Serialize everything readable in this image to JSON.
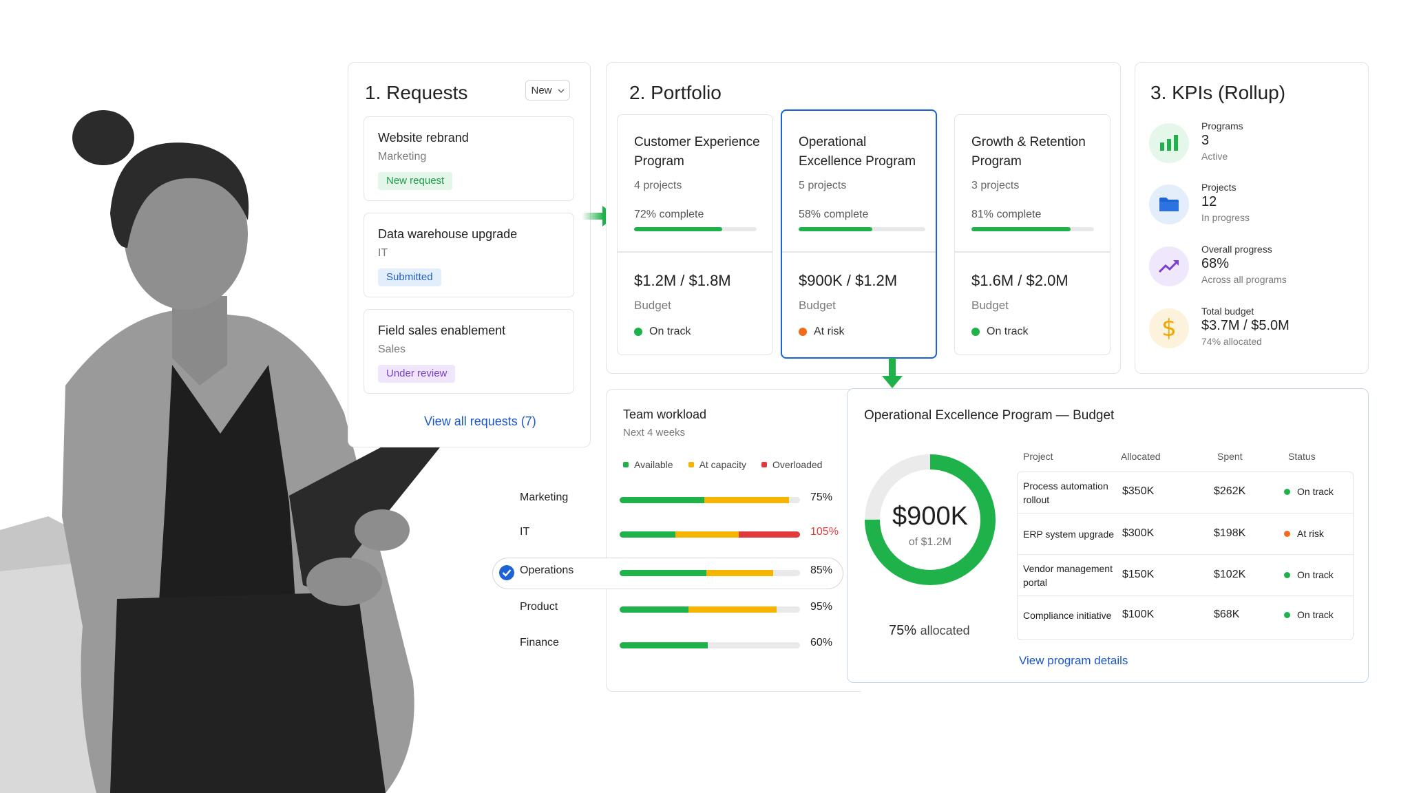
{
  "requests": {
    "title": "1. Requests",
    "new_label": "New",
    "items": [
      {
        "title": "Website rebrand",
        "dept": "Marketing",
        "badge": "New request"
      },
      {
        "title": "Data warehouse upgrade",
        "dept": "IT",
        "badge": "Submitted"
      },
      {
        "title": "Field sales enablement",
        "dept": "Sales",
        "badge": "Under review"
      }
    ],
    "view_all": "View all requests (7)"
  },
  "portfolio": {
    "title": "2. Portfolio",
    "programs": [
      {
        "name": "Customer Experience Program",
        "projects": "4 projects",
        "complete": "72% complete",
        "progress": 0.72,
        "budget": "$1.2M / $1.8M",
        "budget_label": "Budget",
        "status": "On track"
      },
      {
        "name": "Operational Excellence Program",
        "projects": "5 projects",
        "complete": "58% complete",
        "progress": 0.58,
        "budget": "$900K / $1.2M",
        "budget_label": "Budget",
        "status": "At risk"
      },
      {
        "name": "Growth & Retention Program",
        "projects": "3 projects",
        "complete": "81% complete",
        "progress": 0.81,
        "budget": "$1.6M / $2.0M",
        "budget_label": "Budget",
        "status": "On track"
      }
    ]
  },
  "kpis": {
    "title": "3. KPIs (Rollup)",
    "items": [
      {
        "label": "Programs",
        "value": "3",
        "sub": "Active"
      },
      {
        "label": "Projects",
        "value": "12",
        "sub": "In progress"
      },
      {
        "label": "Overall progress",
        "value": "68%",
        "sub": "Across all programs"
      },
      {
        "label": "Total budget",
        "value": "$3.7M / $5.0M",
        "sub": "74% allocated"
      }
    ]
  },
  "workload": {
    "title": "Team workload",
    "subtitle": "Next 4 weeks",
    "legend": [
      "Available",
      "At capacity",
      "Overloaded"
    ],
    "rows": [
      {
        "name": "Marketing",
        "pct": "75%",
        "available": 0.47,
        "capacity": 0.47,
        "overloaded": 0
      },
      {
        "name": "IT",
        "pct": "105%",
        "available": 0.31,
        "capacity": 0.35,
        "overloaded": 0.34
      },
      {
        "name": "Operations",
        "pct": "85%",
        "available": 0.48,
        "capacity": 0.37,
        "overloaded": 0
      },
      {
        "name": "Product",
        "pct": "95%",
        "available": 0.38,
        "capacity": 0.49,
        "overloaded": 0
      },
      {
        "name": "Finance",
        "pct": "60%",
        "available": 0.49,
        "capacity": 0,
        "overloaded": 0
      }
    ]
  },
  "budget": {
    "title": "Operational Excellence Program — Budget",
    "donut_value": "$900K",
    "donut_sub": "of $1.2M",
    "allocated_fraction": 0.75,
    "allocated_pct": "75%",
    "allocated_word": "allocated",
    "headers": [
      "Project",
      "Allocated",
      "Spent",
      "Status"
    ],
    "rows": [
      {
        "project": "Process automation rollout",
        "allocated": "$350K",
        "spent": "$262K",
        "status": "On track"
      },
      {
        "project": "ERP system upgrade",
        "allocated": "$300K",
        "spent": "$198K",
        "status": "At risk"
      },
      {
        "project": "Vendor management portal",
        "allocated": "$150K",
        "spent": "$102K",
        "status": "On track"
      },
      {
        "project": "Compliance initiative",
        "allocated": "$100K",
        "spent": "$68K",
        "status": "On track"
      }
    ],
    "view_link": "View program details"
  },
  "colors": {
    "green": "#1fb24a",
    "amber": "#f5b400",
    "red": "#e03a3a",
    "orange": "#f26b1d",
    "blue": "#1e63d6",
    "link": "#1a56c9"
  },
  "icons": [
    "bar-chart-icon",
    "folder-icon",
    "trend-up-icon",
    "dollar-icon",
    "check-circle-icon",
    "chevron-down-icon",
    "arrow-right-icon",
    "arrow-down-icon"
  ]
}
